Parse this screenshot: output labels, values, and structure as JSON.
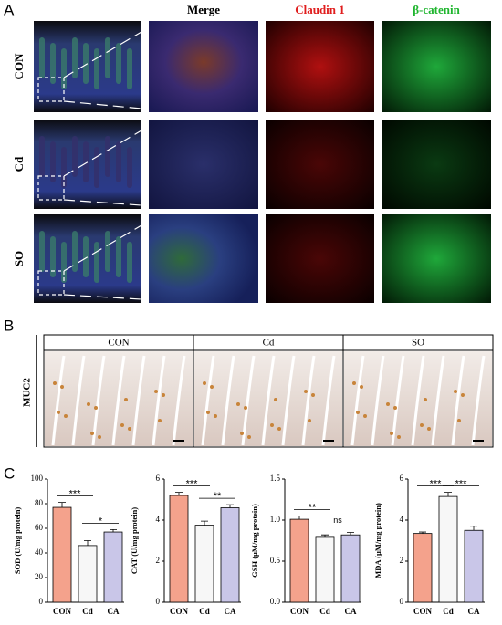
{
  "panel_labels": [
    "A",
    "B",
    "C"
  ],
  "panel_a": {
    "columns": [
      "Merge",
      "Claudin 1",
      "β-catenin"
    ],
    "rows": [
      "CON",
      "Cd",
      "SO"
    ]
  },
  "panel_b": {
    "label": "MUC2",
    "columns": [
      "CON",
      "Cd",
      "SO"
    ]
  },
  "chart_data": [
    {
      "type": "bar",
      "y_label": "SOD (U/mg protein)",
      "categories": [
        "CON",
        "Cd",
        "CA"
      ],
      "values": [
        77,
        46,
        57
      ],
      "errors": [
        4,
        4,
        2
      ],
      "colors": [
        "#f4a28c",
        "#f7f7f7",
        "#c9c6e8"
      ],
      "ylim": [
        0,
        100
      ],
      "yticks": [
        0,
        20,
        40,
        60,
        80,
        100
      ],
      "comparisons": [
        {
          "label": "***",
          "groups": [
            "CON",
            "Cd"
          ]
        },
        {
          "label": "*",
          "groups": [
            "Cd",
            "CA"
          ]
        }
      ]
    },
    {
      "type": "bar",
      "y_label": "CAT (U/mg protein)",
      "categories": [
        "CON",
        "Cd",
        "CA"
      ],
      "values": [
        5.2,
        3.75,
        4.6
      ],
      "errors": [
        0.15,
        0.2,
        0.15
      ],
      "colors": [
        "#f4a28c",
        "#f7f7f7",
        "#c9c6e8"
      ],
      "ylim": [
        0,
        6
      ],
      "yticks": [
        0,
        2,
        4,
        6
      ],
      "comparisons": [
        {
          "label": "***",
          "groups": [
            "CON",
            "Cd"
          ]
        },
        {
          "label": "**",
          "groups": [
            "Cd",
            "CA"
          ]
        }
      ]
    },
    {
      "type": "bar",
      "y_label": "GSH (μM/mg protein)",
      "categories": [
        "CON",
        "Cd",
        "CA"
      ],
      "values": [
        1.01,
        0.79,
        0.82
      ],
      "errors": [
        0.04,
        0.03,
        0.03
      ],
      "colors": [
        "#f4a28c",
        "#f7f7f7",
        "#c9c6e8"
      ],
      "ylim": [
        0,
        1.5
      ],
      "yticks": [
        {
          "value": 0,
          "label": "0.0"
        },
        0.5,
        {
          "value": 1,
          "label": "1.0"
        },
        1.5
      ],
      "comparisons": [
        {
          "label": "**",
          "groups": [
            "CON",
            "Cd"
          ]
        },
        {
          "label": "ns",
          "groups": [
            "Cd",
            "CA"
          ]
        }
      ]
    },
    {
      "type": "bar",
      "y_label": "MDA (μM/mg protein)",
      "categories": [
        "CON",
        "Cd",
        "CA"
      ],
      "values": [
        3.35,
        5.15,
        3.5
      ],
      "errors": [
        0.07,
        0.2,
        0.2
      ],
      "colors": [
        "#f4a28c",
        "#f7f7f7",
        "#c9c6e8"
      ],
      "ylim": [
        0,
        6
      ],
      "yticks": [
        0,
        2,
        4,
        6
      ],
      "comparisons": [
        {
          "label": "***",
          "groups": [
            "CON",
            "Cd"
          ]
        },
        {
          "label": "***",
          "groups": [
            "Cd",
            "CA"
          ]
        }
      ]
    }
  ]
}
